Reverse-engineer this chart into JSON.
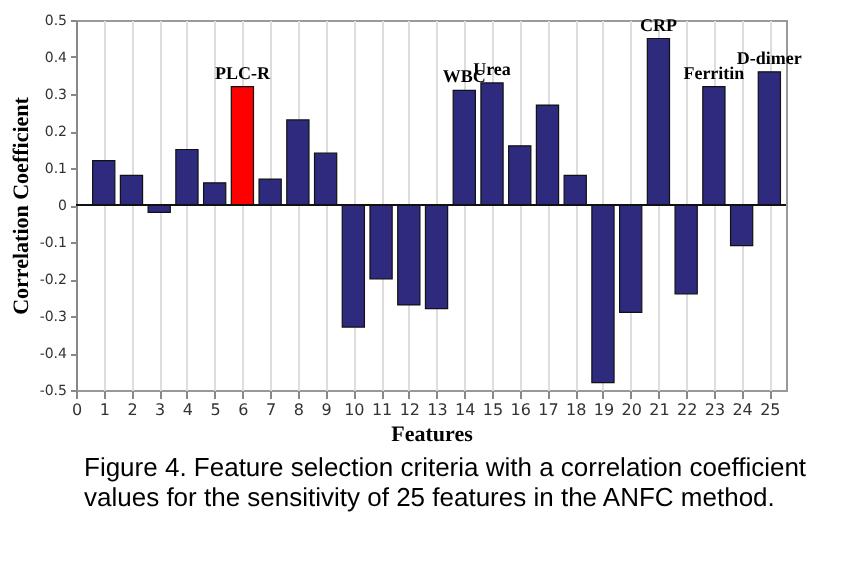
{
  "chart_data": {
    "type": "bar",
    "xlabel": "Features",
    "ylabel": "Correlation Coefficient",
    "x": [
      1,
      2,
      3,
      4,
      5,
      6,
      7,
      8,
      9,
      10,
      11,
      12,
      13,
      14,
      15,
      16,
      17,
      18,
      19,
      20,
      21,
      22,
      23,
      24,
      25
    ],
    "values": [
      0.12,
      0.08,
      -0.02,
      0.15,
      0.06,
      0.32,
      0.07,
      0.23,
      0.14,
      -0.33,
      -0.2,
      -0.27,
      -0.28,
      0.31,
      0.33,
      0.16,
      0.27,
      0.08,
      -0.48,
      -0.29,
      0.45,
      -0.24,
      0.32,
      -0.11,
      0.36
    ],
    "colors": [
      "#2e2a7e",
      "#2e2a7e",
      "#2e2a7e",
      "#2e2a7e",
      "#2e2a7e",
      "#ff0000",
      "#2e2a7e",
      "#2e2a7e",
      "#2e2a7e",
      "#2e2a7e",
      "#2e2a7e",
      "#2e2a7e",
      "#2e2a7e",
      "#2e2a7e",
      "#2e2a7e",
      "#2e2a7e",
      "#2e2a7e",
      "#2e2a7e",
      "#2e2a7e",
      "#2e2a7e",
      "#2e2a7e",
      "#2e2a7e",
      "#2e2a7e",
      "#2e2a7e",
      "#2e2a7e"
    ],
    "xlim": [
      0,
      25.6
    ],
    "xticks": [
      0,
      1,
      2,
      3,
      4,
      5,
      6,
      7,
      8,
      9,
      10,
      11,
      12,
      13,
      14,
      15,
      16,
      17,
      18,
      19,
      20,
      21,
      22,
      23,
      24,
      25
    ],
    "ylim": [
      -0.5,
      0.5
    ],
    "yticks": [
      -0.5,
      -0.4,
      -0.3,
      -0.2,
      -0.1,
      0,
      0.1,
      0.2,
      0.3,
      0.4,
      0.5
    ],
    "grid": "x",
    "annotations": [
      {
        "text": "PLC-R",
        "x": 6,
        "y": 0.32
      },
      {
        "text": "WBC",
        "x": 14,
        "y": 0.31
      },
      {
        "text": "Urea",
        "x": 15,
        "y": 0.33
      },
      {
        "text": "CRP",
        "x": 21,
        "y": 0.45
      },
      {
        "text": "Ferritin",
        "x": 23,
        "y": 0.32
      },
      {
        "text": "D-dimer",
        "x": 25,
        "y": 0.36
      },
      "Figure 4. Feature selection criteria with a correlation coefficient values for the sensitivity of 25 features in the ANFC method."
    ]
  }
}
